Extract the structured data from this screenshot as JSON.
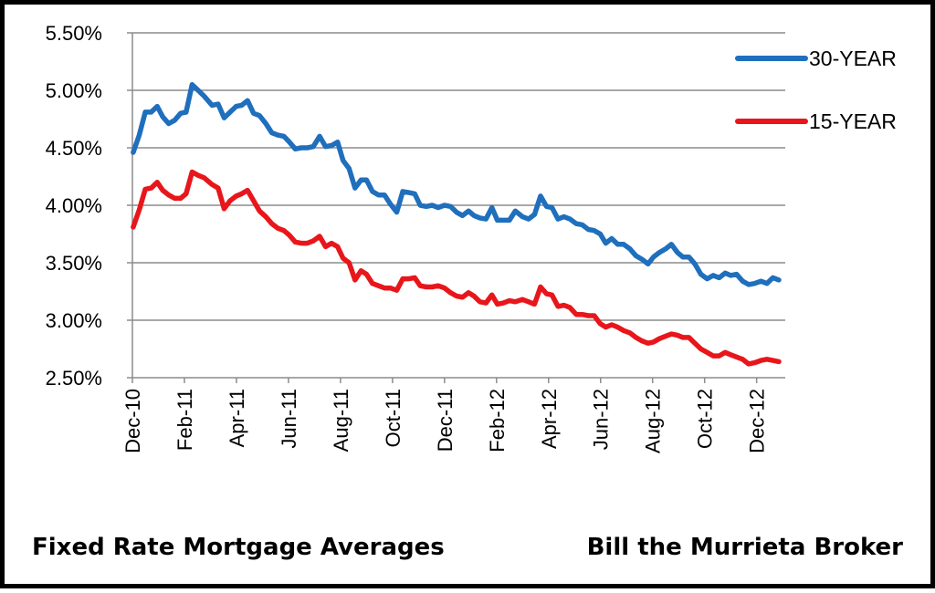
{
  "footer": {
    "left_text": "Fixed Rate Mortgage Averages",
    "right_text": "Bill the Murrieta Broker"
  },
  "chart_data": {
    "type": "line",
    "title": "",
    "xlabel": "",
    "ylabel": "",
    "ylim": [
      0.025,
      0.055
    ],
    "y_ticks": [
      "2.50%",
      "3.00%",
      "3.50%",
      "4.00%",
      "4.50%",
      "5.00%",
      "5.50%"
    ],
    "y_tick_values": [
      0.025,
      0.03,
      0.035,
      0.04,
      0.045,
      0.05,
      0.055
    ],
    "x_ticks": [
      "Dec-10",
      "Feb-11",
      "Apr-11",
      "Jun-11",
      "Aug-11",
      "Oct-11",
      "Dec-11",
      "Feb-12",
      "Apr-12",
      "Jun-12",
      "Aug-12",
      "Oct-12",
      "Dec-12"
    ],
    "grid": "horizontal",
    "legend_position": "top-right",
    "series": [
      {
        "name": "30-YEAR",
        "color": "#1f6fbd",
        "points": [
          [
            "2010-12-02",
            0.0446
          ],
          [
            "2010-12-09",
            0.0461
          ],
          [
            "2010-12-16",
            0.0481
          ],
          [
            "2010-12-23",
            0.0481
          ],
          [
            "2010-12-30",
            0.0486
          ],
          [
            "2011-01-06",
            0.0477
          ],
          [
            "2011-01-13",
            0.0471
          ],
          [
            "2011-01-20",
            0.0474
          ],
          [
            "2011-01-27",
            0.048
          ],
          [
            "2011-02-03",
            0.0481
          ],
          [
            "2011-02-10",
            0.0505
          ],
          [
            "2011-02-17",
            0.05
          ],
          [
            "2011-02-24",
            0.0495
          ],
          [
            "2011-03-03",
            0.0487
          ],
          [
            "2011-03-10",
            0.0488
          ],
          [
            "2011-03-17",
            0.0476
          ],
          [
            "2011-03-24",
            0.0481
          ],
          [
            "2011-03-31",
            0.0486
          ],
          [
            "2011-04-07",
            0.0487
          ],
          [
            "2011-04-14",
            0.0491
          ],
          [
            "2011-04-21",
            0.048
          ],
          [
            "2011-04-28",
            0.0478
          ],
          [
            "2011-05-05",
            0.0471
          ],
          [
            "2011-05-12",
            0.0463
          ],
          [
            "2011-05-19",
            0.0461
          ],
          [
            "2011-05-26",
            0.046
          ],
          [
            "2011-06-02",
            0.0455
          ],
          [
            "2011-06-09",
            0.0449
          ],
          [
            "2011-06-16",
            0.045
          ],
          [
            "2011-06-23",
            0.045
          ],
          [
            "2011-06-30",
            0.0451
          ],
          [
            "2011-07-07",
            0.046
          ],
          [
            "2011-07-14",
            0.0451
          ],
          [
            "2011-07-21",
            0.0452
          ],
          [
            "2011-07-28",
            0.0455
          ],
          [
            "2011-08-04",
            0.0439
          ],
          [
            "2011-08-11",
            0.0432
          ],
          [
            "2011-08-18",
            0.0415
          ],
          [
            "2011-08-25",
            0.0422
          ],
          [
            "2011-09-01",
            0.0422
          ],
          [
            "2011-09-08",
            0.0412
          ],
          [
            "2011-09-15",
            0.0409
          ],
          [
            "2011-09-22",
            0.0409
          ],
          [
            "2011-09-29",
            0.0401
          ],
          [
            "2011-10-06",
            0.0394
          ],
          [
            "2011-10-13",
            0.0412
          ],
          [
            "2011-10-20",
            0.0411
          ],
          [
            "2011-10-27",
            0.041
          ],
          [
            "2011-11-03",
            0.04
          ],
          [
            "2011-11-10",
            0.0399
          ],
          [
            "2011-11-17",
            0.04
          ],
          [
            "2011-11-24",
            0.0398
          ],
          [
            "2011-12-01",
            0.04
          ],
          [
            "2011-12-08",
            0.0399
          ],
          [
            "2011-12-15",
            0.0394
          ],
          [
            "2011-12-22",
            0.0391
          ],
          [
            "2011-12-29",
            0.0395
          ],
          [
            "2012-01-05",
            0.0391
          ],
          [
            "2012-01-12",
            0.0389
          ],
          [
            "2012-01-19",
            0.0388
          ],
          [
            "2012-01-26",
            0.0398
          ],
          [
            "2012-02-02",
            0.0387
          ],
          [
            "2012-02-09",
            0.0387
          ],
          [
            "2012-02-16",
            0.0387
          ],
          [
            "2012-02-23",
            0.0395
          ],
          [
            "2012-03-01",
            0.039
          ],
          [
            "2012-03-08",
            0.0388
          ],
          [
            "2012-03-15",
            0.0392
          ],
          [
            "2012-03-22",
            0.0408
          ],
          [
            "2012-03-29",
            0.0399
          ],
          [
            "2012-04-05",
            0.0398
          ],
          [
            "2012-04-12",
            0.0388
          ],
          [
            "2012-04-19",
            0.039
          ],
          [
            "2012-04-26",
            0.0388
          ],
          [
            "2012-05-03",
            0.0384
          ],
          [
            "2012-05-10",
            0.0383
          ],
          [
            "2012-05-17",
            0.0379
          ],
          [
            "2012-05-24",
            0.0378
          ],
          [
            "2012-05-31",
            0.0375
          ],
          [
            "2012-06-07",
            0.0367
          ],
          [
            "2012-06-14",
            0.0371
          ],
          [
            "2012-06-21",
            0.0366
          ],
          [
            "2012-06-28",
            0.0366
          ],
          [
            "2012-07-05",
            0.0362
          ],
          [
            "2012-07-12",
            0.0356
          ],
          [
            "2012-07-19",
            0.0353
          ],
          [
            "2012-07-26",
            0.0349
          ],
          [
            "2012-08-02",
            0.0355
          ],
          [
            "2012-08-09",
            0.0359
          ],
          [
            "2012-08-16",
            0.0362
          ],
          [
            "2012-08-23",
            0.0366
          ],
          [
            "2012-08-30",
            0.0359
          ],
          [
            "2012-09-06",
            0.0355
          ],
          [
            "2012-09-13",
            0.0355
          ],
          [
            "2012-09-20",
            0.0349
          ],
          [
            "2012-09-27",
            0.034
          ],
          [
            "2012-10-04",
            0.0336
          ],
          [
            "2012-10-11",
            0.0339
          ],
          [
            "2012-10-18",
            0.0337
          ],
          [
            "2012-10-25",
            0.0341
          ],
          [
            "2012-11-01",
            0.0339
          ],
          [
            "2012-11-08",
            0.034
          ],
          [
            "2012-11-15",
            0.0334
          ],
          [
            "2012-11-22",
            0.0331
          ],
          [
            "2012-11-29",
            0.0332
          ],
          [
            "2012-12-06",
            0.0334
          ],
          [
            "2012-12-13",
            0.0332
          ],
          [
            "2012-12-20",
            0.0337
          ],
          [
            "2012-12-27",
            0.0335
          ]
        ]
      },
      {
        "name": "15-YEAR",
        "color": "#e8161b",
        "points": [
          [
            "2010-12-02",
            0.0381
          ],
          [
            "2010-12-09",
            0.0396
          ],
          [
            "2010-12-16",
            0.0414
          ],
          [
            "2010-12-23",
            0.0415
          ],
          [
            "2010-12-30",
            0.042
          ],
          [
            "2011-01-06",
            0.0413
          ],
          [
            "2011-01-13",
            0.0409
          ],
          [
            "2011-01-20",
            0.0406
          ],
          [
            "2011-01-27",
            0.0406
          ],
          [
            "2011-02-03",
            0.041
          ],
          [
            "2011-02-10",
            0.0429
          ],
          [
            "2011-02-17",
            0.0426
          ],
          [
            "2011-02-24",
            0.0424
          ],
          [
            "2011-03-03",
            0.0418
          ],
          [
            "2011-03-10",
            0.0415
          ],
          [
            "2011-03-17",
            0.0397
          ],
          [
            "2011-03-24",
            0.0404
          ],
          [
            "2011-03-31",
            0.0408
          ],
          [
            "2011-04-07",
            0.041
          ],
          [
            "2011-04-14",
            0.0413
          ],
          [
            "2011-04-21",
            0.0404
          ],
          [
            "2011-04-28",
            0.0395
          ],
          [
            "2011-05-05",
            0.039
          ],
          [
            "2011-05-12",
            0.0384
          ],
          [
            "2011-05-19",
            0.038
          ],
          [
            "2011-05-26",
            0.0378
          ],
          [
            "2011-06-02",
            0.0374
          ],
          [
            "2011-06-09",
            0.0368
          ],
          [
            "2011-06-16",
            0.0367
          ],
          [
            "2011-06-23",
            0.0367
          ],
          [
            "2011-06-30",
            0.0369
          ],
          [
            "2011-07-07",
            0.0373
          ],
          [
            "2011-07-14",
            0.0364
          ],
          [
            "2011-07-21",
            0.0367
          ],
          [
            "2011-07-28",
            0.0364
          ],
          [
            "2011-08-04",
            0.0354
          ],
          [
            "2011-08-11",
            0.035
          ],
          [
            "2011-08-18",
            0.0335
          ],
          [
            "2011-08-25",
            0.0343
          ],
          [
            "2011-09-01",
            0.034
          ],
          [
            "2011-09-08",
            0.0332
          ],
          [
            "2011-09-15",
            0.033
          ],
          [
            "2011-09-22",
            0.0328
          ],
          [
            "2011-09-29",
            0.0328
          ],
          [
            "2011-10-06",
            0.0326
          ],
          [
            "2011-10-13",
            0.0336
          ],
          [
            "2011-10-20",
            0.0336
          ],
          [
            "2011-10-27",
            0.0337
          ],
          [
            "2011-11-03",
            0.033
          ],
          [
            "2011-11-10",
            0.0329
          ],
          [
            "2011-11-17",
            0.0329
          ],
          [
            "2011-11-24",
            0.033
          ],
          [
            "2011-12-01",
            0.0328
          ],
          [
            "2011-12-08",
            0.0324
          ],
          [
            "2011-12-15",
            0.0321
          ],
          [
            "2011-12-22",
            0.032
          ],
          [
            "2011-12-29",
            0.0324
          ],
          [
            "2012-01-05",
            0.0321
          ],
          [
            "2012-01-12",
            0.0316
          ],
          [
            "2012-01-19",
            0.0315
          ],
          [
            "2012-01-26",
            0.0322
          ],
          [
            "2012-02-02",
            0.0314
          ],
          [
            "2012-02-09",
            0.0315
          ],
          [
            "2012-02-16",
            0.0317
          ],
          [
            "2012-02-23",
            0.0316
          ],
          [
            "2012-03-01",
            0.0318
          ],
          [
            "2012-03-08",
            0.0316
          ],
          [
            "2012-03-15",
            0.0314
          ],
          [
            "2012-03-22",
            0.0329
          ],
          [
            "2012-03-29",
            0.0323
          ],
          [
            "2012-04-05",
            0.0322
          ],
          [
            "2012-04-12",
            0.0312
          ],
          [
            "2012-04-19",
            0.0313
          ],
          [
            "2012-04-26",
            0.0311
          ],
          [
            "2012-05-03",
            0.0305
          ],
          [
            "2012-05-10",
            0.0305
          ],
          [
            "2012-05-17",
            0.0304
          ],
          [
            "2012-05-24",
            0.0304
          ],
          [
            "2012-05-31",
            0.0297
          ],
          [
            "2012-06-07",
            0.0294
          ],
          [
            "2012-06-14",
            0.0296
          ],
          [
            "2012-06-21",
            0.0294
          ],
          [
            "2012-06-28",
            0.0291
          ],
          [
            "2012-07-05",
            0.0289
          ],
          [
            "2012-07-12",
            0.0285
          ],
          [
            "2012-07-19",
            0.0282
          ],
          [
            "2012-07-26",
            0.028
          ],
          [
            "2012-08-02",
            0.0281
          ],
          [
            "2012-08-09",
            0.0284
          ],
          [
            "2012-08-16",
            0.0286
          ],
          [
            "2012-08-23",
            0.0288
          ],
          [
            "2012-08-30",
            0.0287
          ],
          [
            "2012-09-06",
            0.0285
          ],
          [
            "2012-09-13",
            0.0285
          ],
          [
            "2012-09-20",
            0.028
          ],
          [
            "2012-09-27",
            0.0275
          ],
          [
            "2012-10-04",
            0.0272
          ],
          [
            "2012-10-11",
            0.0269
          ],
          [
            "2012-10-18",
            0.0269
          ],
          [
            "2012-10-25",
            0.0272
          ],
          [
            "2012-11-01",
            0.027
          ],
          [
            "2012-11-08",
            0.0268
          ],
          [
            "2012-11-15",
            0.0266
          ],
          [
            "2012-11-22",
            0.0262
          ],
          [
            "2012-11-29",
            0.0263
          ],
          [
            "2012-12-06",
            0.0265
          ],
          [
            "2012-12-13",
            0.0266
          ],
          [
            "2012-12-20",
            0.0265
          ],
          [
            "2012-12-27",
            0.0264
          ]
        ]
      }
    ]
  }
}
